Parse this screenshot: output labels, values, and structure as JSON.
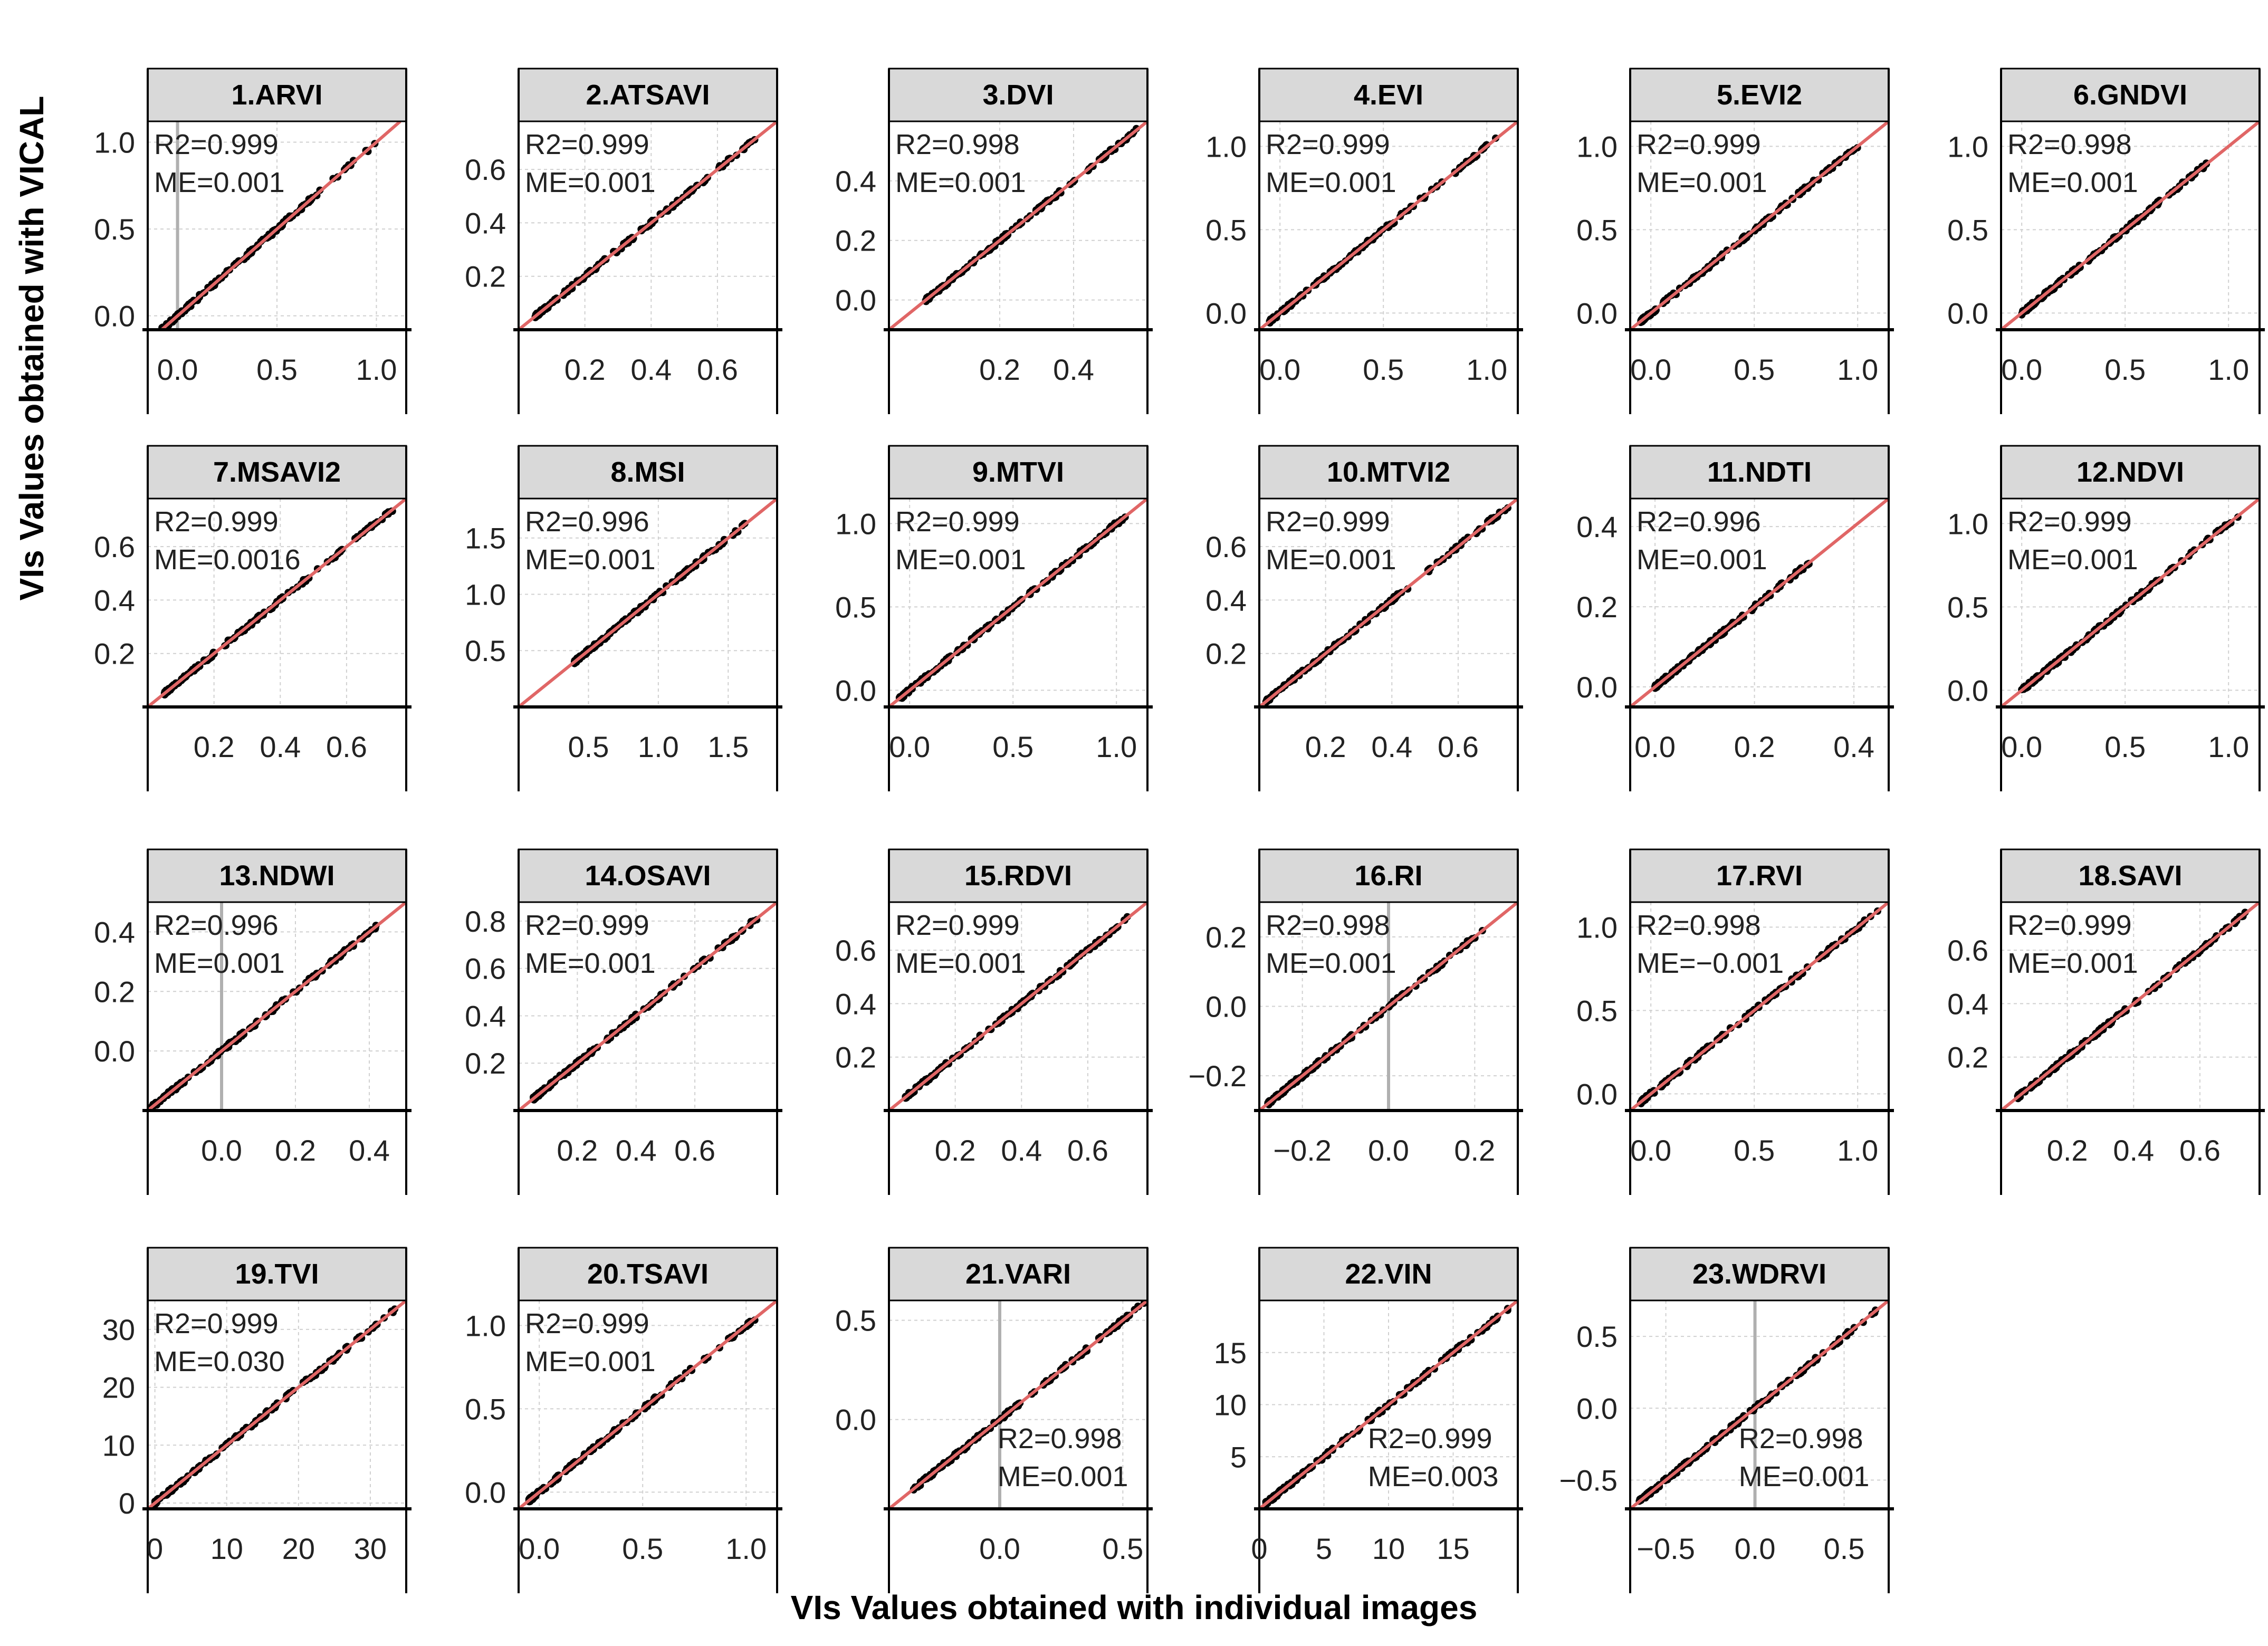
{
  "figure": {
    "ylabel": "VIs Values obtained with VICAL",
    "xlabel": "VIs Values obtained with individual images"
  },
  "colors": {
    "points": "#000000",
    "fit_line": "#e06666",
    "zero_line": "#b0b0b0",
    "strip": "#d9d9d9",
    "grid": "#d0d0d0"
  },
  "chart_data": [
    {
      "type": "scatter",
      "title": "1.ARVI",
      "r2": "R2=0.999",
      "me": "ME=0.001",
      "xlim": [
        -0.15,
        1.15
      ],
      "ylim": [
        -0.08,
        1.12
      ],
      "xticks": [
        0.0,
        0.5,
        1.0
      ],
      "yticks": [
        0.0,
        0.5,
        1.0
      ],
      "ticklabels_x": [
        "0.0",
        "0.5",
        "1.0"
      ],
      "ticklabels_y": [
        "0.0",
        "0.5",
        "1.0"
      ],
      "zero_line": true,
      "annotation": "top-left",
      "x_range": [
        -0.1,
        1.0
      ]
    },
    {
      "type": "scatter",
      "title": "2.ATSAVI",
      "r2": "R2=0.999",
      "me": "ME=0.001",
      "xlim": [
        0.0,
        0.78
      ],
      "ylim": [
        0.0,
        0.78
      ],
      "xticks": [
        0.2,
        0.4,
        0.6
      ],
      "yticks": [
        0.2,
        0.4,
        0.6
      ],
      "ticklabels_x": [
        "0.2",
        "0.4",
        "0.6"
      ],
      "ticklabels_y": [
        "0.2",
        "0.4",
        "0.6"
      ],
      "zero_line": false,
      "annotation": "top-left",
      "x_range": [
        0.05,
        0.72
      ]
    },
    {
      "type": "scatter",
      "title": "3.DVI",
      "r2": "R2=0.998",
      "me": "ME=0.001",
      "xlim": [
        -0.1,
        0.6
      ],
      "ylim": [
        -0.1,
        0.6
      ],
      "xticks": [
        0.2,
        0.4
      ],
      "yticks": [
        0.0,
        0.2,
        0.4
      ],
      "ticklabels_x": [
        "0.2",
        "0.4"
      ],
      "ticklabels_y": [
        "0.0",
        "0.2",
        "0.4"
      ],
      "zero_line": false,
      "annotation": "top-left",
      "x_range": [
        0.0,
        0.58
      ]
    },
    {
      "type": "scatter",
      "title": "4.EVI",
      "r2": "R2=0.999",
      "me": "ME=0.001",
      "xlim": [
        -0.1,
        1.15
      ],
      "ylim": [
        -0.1,
        1.15
      ],
      "xticks": [
        0.0,
        0.5,
        1.0
      ],
      "yticks": [
        0.0,
        0.5,
        1.0
      ],
      "ticklabels_x": [
        "0.0",
        "0.5",
        "1.0"
      ],
      "ticklabels_y": [
        "0.0",
        "0.5",
        "1.0"
      ],
      "zero_line": false,
      "annotation": "top-left",
      "x_range": [
        -0.05,
        1.05
      ]
    },
    {
      "type": "scatter",
      "title": "5.EVI2",
      "r2": "R2=0.999",
      "me": "ME=0.001",
      "xlim": [
        -0.1,
        1.15
      ],
      "ylim": [
        -0.1,
        1.15
      ],
      "xticks": [
        0.0,
        0.5,
        1.0
      ],
      "yticks": [
        0.0,
        0.5,
        1.0
      ],
      "ticklabels_x": [
        "0.0",
        "0.5",
        "1.0"
      ],
      "ticklabels_y": [
        "0.0",
        "0.5",
        "1.0"
      ],
      "zero_line": false,
      "annotation": "top-left",
      "x_range": [
        -0.05,
        1.0
      ]
    },
    {
      "type": "scatter",
      "title": "6.GNDVI",
      "r2": "R2=0.998",
      "me": "ME=0.001",
      "xlim": [
        -0.1,
        1.15
      ],
      "ylim": [
        -0.1,
        1.15
      ],
      "xticks": [
        0.0,
        0.5,
        1.0
      ],
      "yticks": [
        0.0,
        0.5,
        1.0
      ],
      "ticklabels_x": [
        "0.0",
        "0.5",
        "1.0"
      ],
      "ticklabels_y": [
        "0.0",
        "0.5",
        "1.0"
      ],
      "zero_line": false,
      "annotation": "top-left",
      "x_range": [
        0.0,
        0.9
      ]
    },
    {
      "type": "scatter",
      "title": "7.MSAVI2",
      "r2": "R2=0.999",
      "me": "ME=0.0016",
      "xlim": [
        0.0,
        0.78
      ],
      "ylim": [
        0.0,
        0.78
      ],
      "xticks": [
        0.2,
        0.4,
        0.6
      ],
      "yticks": [
        0.2,
        0.4,
        0.6
      ],
      "ticklabels_x": [
        "0.2",
        "0.4",
        "0.6"
      ],
      "ticklabels_y": [
        "0.2",
        "0.4",
        "0.6"
      ],
      "zero_line": false,
      "annotation": "top-left",
      "x_range": [
        0.05,
        0.75
      ]
    },
    {
      "type": "scatter",
      "title": "8.MSI",
      "r2": "R2=0.996",
      "me": "ME=0.001",
      "xlim": [
        0.0,
        1.85
      ],
      "ylim": [
        0.0,
        1.85
      ],
      "xticks": [
        0.5,
        1.0,
        1.5
      ],
      "yticks": [
        0.5,
        1.0,
        1.5
      ],
      "ticklabels_x": [
        "0.5",
        "1.0",
        "1.5"
      ],
      "ticklabels_y": [
        "0.5",
        "1.0",
        "1.5"
      ],
      "zero_line": false,
      "annotation": "top-left",
      "x_range": [
        0.4,
        1.65
      ]
    },
    {
      "type": "scatter",
      "title": "9.MTVI",
      "r2": "R2=0.999",
      "me": "ME=0.001",
      "xlim": [
        -0.1,
        1.15
      ],
      "ylim": [
        -0.1,
        1.15
      ],
      "xticks": [
        0.0,
        0.5,
        1.0
      ],
      "yticks": [
        0.0,
        0.5,
        1.0
      ],
      "ticklabels_x": [
        "0.0",
        "0.5",
        "1.0"
      ],
      "ticklabels_y": [
        "0.0",
        "0.5",
        "1.0"
      ],
      "zero_line": false,
      "annotation": "top-left",
      "x_range": [
        -0.05,
        1.05
      ]
    },
    {
      "type": "scatter",
      "title": "10.MTVI2",
      "r2": "R2=0.999",
      "me": "ME=0.001",
      "xlim": [
        0.0,
        0.78
      ],
      "ylim": [
        0.0,
        0.78
      ],
      "xticks": [
        0.2,
        0.4,
        0.6
      ],
      "yticks": [
        0.2,
        0.4,
        0.6
      ],
      "ticklabels_x": [
        "0.2",
        "0.4",
        "0.6"
      ],
      "ticklabels_y": [
        "0.2",
        "0.4",
        "0.6"
      ],
      "zero_line": false,
      "annotation": "top-left",
      "x_range": [
        0.02,
        0.75
      ]
    },
    {
      "type": "scatter",
      "title": "11.NDTI",
      "r2": "R2=0.996",
      "me": "ME=0.001",
      "xlim": [
        -0.05,
        0.47
      ],
      "ylim": [
        -0.05,
        0.47
      ],
      "xticks": [
        0.0,
        0.2,
        0.4
      ],
      "yticks": [
        0.0,
        0.2,
        0.4
      ],
      "ticklabels_x": [
        "0.0",
        "0.2",
        "0.4"
      ],
      "ticklabels_y": [
        "0.0",
        "0.2",
        "0.4"
      ],
      "zero_line": false,
      "annotation": "top-left",
      "x_range": [
        0.0,
        0.32
      ]
    },
    {
      "type": "scatter",
      "title": "12.NDVI",
      "r2": "R2=0.999",
      "me": "ME=0.001",
      "xlim": [
        -0.1,
        1.15
      ],
      "ylim": [
        -0.1,
        1.15
      ],
      "xticks": [
        0.0,
        0.5,
        1.0
      ],
      "yticks": [
        0.0,
        0.5,
        1.0
      ],
      "ticklabels_x": [
        "0.0",
        "0.5",
        "1.0"
      ],
      "ticklabels_y": [
        "0.0",
        "0.5",
        "1.0"
      ],
      "zero_line": false,
      "annotation": "top-left",
      "x_range": [
        0.0,
        1.05
      ]
    },
    {
      "type": "scatter",
      "title": "13.NDWI",
      "r2": "R2=0.996",
      "me": "ME=0.001",
      "xlim": [
        -0.2,
        0.5
      ],
      "ylim": [
        -0.2,
        0.5
      ],
      "xticks": [
        0.0,
        0.2,
        0.4
      ],
      "yticks": [
        0.0,
        0.2,
        0.4
      ],
      "ticklabels_x": [
        "0.0",
        "0.2",
        "0.4"
      ],
      "ticklabels_y": [
        "0.0",
        "0.2",
        "0.4"
      ],
      "zero_line": true,
      "annotation": "top-left",
      "x_range": [
        -0.2,
        0.42
      ]
    },
    {
      "type": "scatter",
      "title": "14.OSAVI",
      "r2": "R2=0.999",
      "me": "ME=0.001",
      "xlim": [
        0.0,
        0.88
      ],
      "ylim": [
        0.0,
        0.88
      ],
      "xticks": [
        0.2,
        0.4,
        0.6
      ],
      "yticks": [
        0.2,
        0.4,
        0.6,
        0.8
      ],
      "ticklabels_x": [
        "0.2",
        "0.4",
        "0.6"
      ],
      "ticklabels_y": [
        "0.2",
        "0.4",
        "0.6",
        "0.8"
      ],
      "zero_line": false,
      "annotation": "top-left",
      "x_range": [
        0.05,
        0.82
      ]
    },
    {
      "type": "scatter",
      "title": "15.RDVI",
      "r2": "R2=0.999",
      "me": "ME=0.001",
      "xlim": [
        0.0,
        0.78
      ],
      "ylim": [
        0.0,
        0.78
      ],
      "xticks": [
        0.2,
        0.4,
        0.6
      ],
      "yticks": [
        0.2,
        0.4,
        0.6
      ],
      "ticklabels_x": [
        "0.2",
        "0.4",
        "0.6"
      ],
      "ticklabels_y": [
        "0.2",
        "0.4",
        "0.6"
      ],
      "zero_line": false,
      "annotation": "top-left",
      "x_range": [
        0.05,
        0.72
      ]
    },
    {
      "type": "scatter",
      "title": "16.RI",
      "r2": "R2=0.998",
      "me": "ME=0.001",
      "xlim": [
        -0.3,
        0.3
      ],
      "ylim": [
        -0.3,
        0.3
      ],
      "xticks": [
        -0.2,
        0.0,
        0.2
      ],
      "yticks": [
        -0.2,
        0.0,
        0.2
      ],
      "ticklabels_x": [
        "−0.2",
        "0.0",
        "0.2"
      ],
      "ticklabels_y": [
        "−0.2",
        "0.0",
        "0.2"
      ],
      "zero_line": true,
      "annotation": "top-left",
      "x_range": [
        -0.28,
        0.22
      ]
    },
    {
      "type": "scatter",
      "title": "17.RVI",
      "r2": "R2=0.998",
      "me": "ME=−0.001",
      "xlim": [
        -0.1,
        1.15
      ],
      "ylim": [
        -0.1,
        1.15
      ],
      "xticks": [
        0.0,
        0.5,
        1.0
      ],
      "yticks": [
        0.0,
        0.5,
        1.0
      ],
      "ticklabels_x": [
        "0.0",
        "0.5",
        "1.0"
      ],
      "ticklabels_y": [
        "0.0",
        "0.5",
        "1.0"
      ],
      "zero_line": false,
      "annotation": "top-left",
      "x_range": [
        -0.05,
        1.1
      ]
    },
    {
      "type": "scatter",
      "title": "18.SAVI",
      "r2": "R2=0.999",
      "me": "ME=0.001",
      "xlim": [
        0.0,
        0.78
      ],
      "ylim": [
        0.0,
        0.78
      ],
      "xticks": [
        0.2,
        0.4,
        0.6
      ],
      "yticks": [
        0.2,
        0.4,
        0.6
      ],
      "ticklabels_x": [
        "0.2",
        "0.4",
        "0.6"
      ],
      "ticklabels_y": [
        "0.2",
        "0.4",
        "0.6"
      ],
      "zero_line": false,
      "annotation": "top-left",
      "x_range": [
        0.05,
        0.75
      ]
    },
    {
      "type": "scatter",
      "title": "19.TVI",
      "r2": "R2=0.999",
      "me": "ME=0.030",
      "xlim": [
        -1,
        35
      ],
      "ylim": [
        -1,
        35
      ],
      "xticks": [
        0,
        10,
        20,
        30
      ],
      "yticks": [
        0,
        10,
        20,
        30
      ],
      "ticklabels_x": [
        "0",
        "10",
        "20",
        "30"
      ],
      "ticklabels_y": [
        "0",
        "10",
        "20",
        "30"
      ],
      "zero_line": false,
      "annotation": "top-left",
      "x_range": [
        0,
        34
      ]
    },
    {
      "type": "scatter",
      "title": "20.TSAVI",
      "r2": "R2=0.999",
      "me": "ME=0.001",
      "xlim": [
        -0.1,
        1.15
      ],
      "ylim": [
        -0.1,
        1.15
      ],
      "xticks": [
        0.0,
        0.5,
        1.0
      ],
      "yticks": [
        0.0,
        0.5,
        1.0
      ],
      "ticklabels_x": [
        "0.0",
        "0.5",
        "1.0"
      ],
      "ticklabels_y": [
        "0.0",
        "0.5",
        "1.0"
      ],
      "zero_line": false,
      "annotation": "top-left",
      "x_range": [
        -0.05,
        1.05
      ]
    },
    {
      "type": "scatter",
      "title": "21.VARI",
      "r2": "R2=0.998",
      "me": "ME=0.001",
      "xlim": [
        -0.45,
        0.6
      ],
      "ylim": [
        -0.45,
        0.6
      ],
      "xticks": [
        0.0,
        0.5
      ],
      "yticks": [
        0.0,
        0.5
      ],
      "ticklabels_x": [
        "0.0",
        "0.5"
      ],
      "ticklabels_y": [
        "0.0",
        "0.5"
      ],
      "zero_line": true,
      "annotation": "bottom-right",
      "x_range": [
        -0.35,
        0.6
      ]
    },
    {
      "type": "scatter",
      "title": "22.VIN",
      "r2": "R2=0.999",
      "me": "ME=0.003",
      "xlim": [
        0,
        20
      ],
      "ylim": [
        0,
        20
      ],
      "xticks": [
        0,
        5,
        10,
        15
      ],
      "yticks": [
        5,
        10,
        15
      ],
      "ticklabels_x": [
        "0",
        "5",
        "10",
        "15"
      ],
      "ticklabels_y": [
        "5",
        "10",
        "15"
      ],
      "zero_line": false,
      "annotation": "bottom-right",
      "x_range": [
        0.5,
        19.5
      ]
    },
    {
      "type": "scatter",
      "title": "23.WDRVI",
      "r2": "R2=0.998",
      "me": "ME=0.001",
      "xlim": [
        -0.7,
        0.75
      ],
      "ylim": [
        -0.7,
        0.75
      ],
      "xticks": [
        -0.5,
        0.0,
        0.5
      ],
      "yticks": [
        -0.5,
        0.0,
        0.5
      ],
      "ticklabels_x": [
        "−0.5",
        "0.0",
        "0.5"
      ],
      "ticklabels_y": [
        "−0.5",
        "0.0",
        "0.5"
      ],
      "zero_line": true,
      "annotation": "bottom-right",
      "x_range": [
        -0.65,
        0.7
      ]
    }
  ]
}
